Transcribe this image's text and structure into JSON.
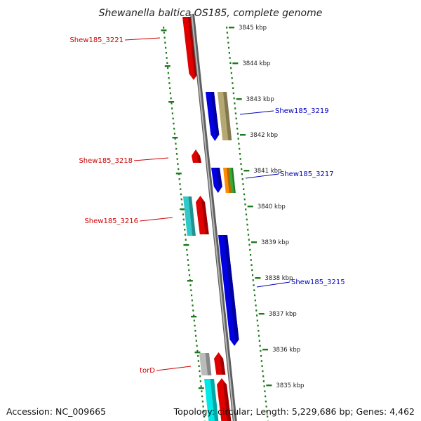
{
  "title": "Shewanella baltica OS185, complete genome",
  "accession": "Accession: NC_009665",
  "topology": "Topology: circular; Length: 5,229,686 bp; Genes: 4,462",
  "colors": {
    "backbone": "#8c8c8c",
    "ticks": "#1f7a1f",
    "label_left": "#cc0000",
    "label_right": "#0000bb"
  },
  "scale": {
    "unit": "kbp",
    "ticks": [
      "3845 kbp",
      "3844 kbp",
      "3843 kbp",
      "3842 kbp",
      "3841 kbp",
      "3840 kbp",
      "3839 kbp",
      "3838 kbp",
      "3837 kbp",
      "3836 kbp",
      "3835 kbp"
    ]
  },
  "labels": [
    {
      "text": "Shew185_3221",
      "side": "left"
    },
    {
      "text": "Shew185_3219",
      "side": "right"
    },
    {
      "text": "Shew185_3218",
      "side": "left"
    },
    {
      "text": "Shew185_3217",
      "side": "right"
    },
    {
      "text": "Shew185_3216",
      "side": "left"
    },
    {
      "text": "Shew185_3215",
      "side": "right"
    },
    {
      "text": "torD",
      "side": "left"
    }
  ],
  "features": [
    {
      "ring": "inner",
      "strand": "+",
      "color": "#e00000"
    },
    {
      "ring": "outer",
      "strand": "-",
      "color": "#0000e0"
    },
    {
      "ring": "outer2",
      "strand": "-",
      "color": "#b5a870"
    },
    {
      "ring": "inner",
      "strand": "+",
      "color": "#e00000"
    },
    {
      "ring": "outer",
      "strand": "-",
      "color": "#0000e0"
    },
    {
      "ring": "outer2",
      "strand": "-",
      "color": "#ff8c00"
    },
    {
      "ring": "outer2",
      "strand": "-",
      "color": "#33aa33"
    },
    {
      "ring": "inner2",
      "strand": "+",
      "color": "#30c8c8"
    },
    {
      "ring": "inner",
      "strand": "+",
      "color": "#e00000"
    },
    {
      "ring": "outer",
      "strand": "-",
      "color": "#0000e0"
    },
    {
      "ring": "inner2",
      "strand": "+",
      "color": "#bbbbbb"
    },
    {
      "ring": "inner",
      "strand": "+",
      "color": "#e00000"
    },
    {
      "ring": "inner2",
      "strand": "+",
      "color": "#00e8e8"
    },
    {
      "ring": "inner",
      "strand": "+",
      "color": "#e00000"
    }
  ]
}
